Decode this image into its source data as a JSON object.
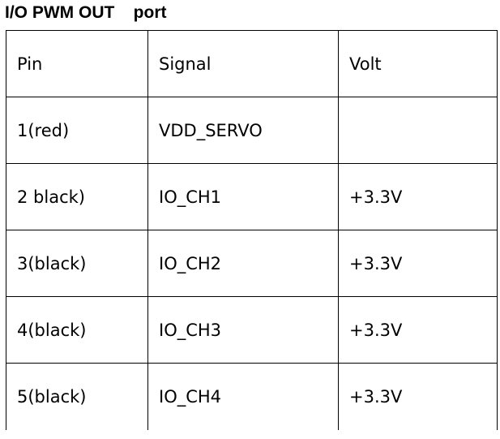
{
  "title": "I/O PWM OUT    port",
  "table": {
    "headers": [
      "Pin",
      "Signal",
      "Volt"
    ],
    "rows": [
      [
        "1(red)",
        "VDD_SERVO",
        ""
      ],
      [
        "2 black)",
        "IO_CH1",
        "+3.3V"
      ],
      [
        "3(black)",
        "IO_CH2",
        "+3.3V"
      ],
      [
        "4(black)",
        "IO_CH3",
        "+3.3V"
      ],
      [
        "5(black)",
        "IO_CH4",
        "+3.3V"
      ]
    ]
  }
}
